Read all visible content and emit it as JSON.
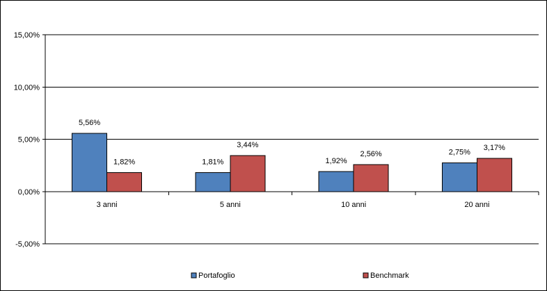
{
  "chart_data": {
    "type": "bar",
    "categories": [
      "3 anni",
      "5 anni",
      "10 anni",
      "20 anni"
    ],
    "series": [
      {
        "name": "Portafoglio",
        "values": [
          5.56,
          1.81,
          1.92,
          2.75
        ],
        "labels": [
          "5,56%",
          "1,81%",
          "1,92%",
          "2,75%"
        ],
        "color": "#4F81BD"
      },
      {
        "name": "Benchmark",
        "values": [
          1.82,
          3.44,
          2.56,
          3.17
        ],
        "labels": [
          "1,82%",
          "3,44%",
          "2,56%",
          "3,17%"
        ],
        "color": "#C0504D"
      }
    ],
    "ylim": [
      -5,
      15
    ],
    "yticks": [
      -5,
      0,
      5,
      10,
      15
    ],
    "ytick_labels": [
      "-5,00%",
      "0,00%",
      "5,00%",
      "10,00%",
      "15,00%"
    ],
    "grid": true,
    "legend_position": "bottom"
  }
}
